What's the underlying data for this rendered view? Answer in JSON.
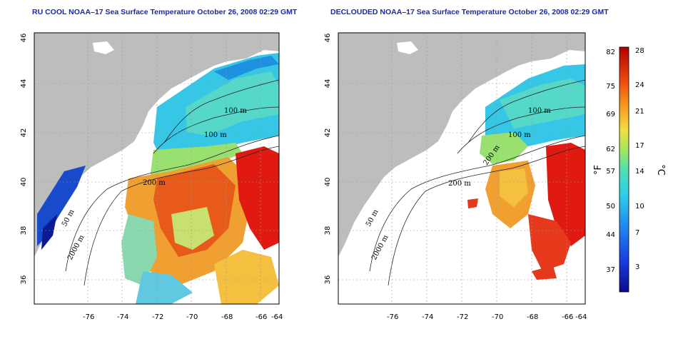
{
  "panels": [
    {
      "title": "RU COOL NOAA–17 Sea Surface Temperature October 26, 2008 02:29 GMT",
      "x_ticks": [
        "-76",
        "-74",
        "-72",
        "-70",
        "-68",
        "-66",
        "-64"
      ],
      "y_ticks": [
        "46",
        "44",
        "42",
        "40",
        "38",
        "36"
      ],
      "contour_labels": [
        "100 m",
        "100 m",
        "200 m",
        "50 m",
        "2000 m"
      ]
    },
    {
      "title": "DECLOUDED NOAA–17 Sea Surface Temperature October 26, 2008 02:29 GMT",
      "x_ticks": [
        "-76",
        "-74",
        "-72",
        "-70",
        "-68",
        "-66",
        "-64"
      ],
      "y_ticks": [
        "46",
        "44",
        "42",
        "40",
        "38",
        "36"
      ],
      "contour_labels": [
        "100 m",
        "100 m",
        "200 m",
        "200 m",
        "50 m",
        "2000 m"
      ]
    }
  ],
  "colorbar": {
    "fahrenheit_label": "°F",
    "celsius_label": "°C",
    "fahrenheit_ticks": [
      "82",
      "75",
      "69",
      "62",
      "57",
      "50",
      "44",
      "37"
    ],
    "celsius_ticks": [
      "28",
      "24",
      "21",
      "17",
      "14",
      "10",
      "7",
      "3"
    ]
  },
  "colors": {
    "land": "#bdbdbd",
    "title": "#1a2aa8",
    "cold": "#1a1aa0",
    "cool": "#30c8e8",
    "mild": "#7ee08a",
    "warm": "#f5a020",
    "hot": "#e01a10"
  }
}
